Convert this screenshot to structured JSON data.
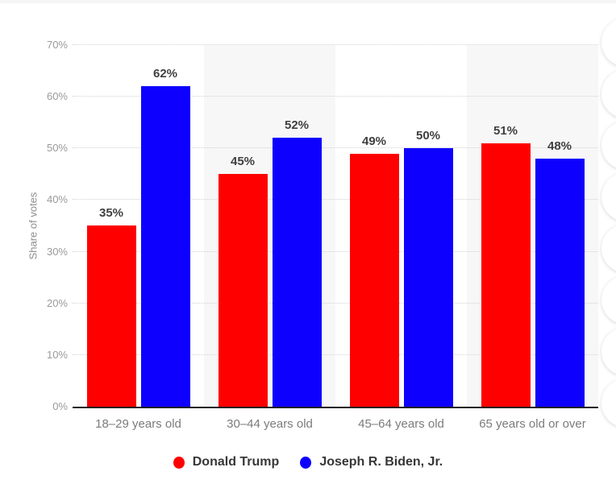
{
  "chart_data": {
    "type": "bar",
    "title": "",
    "categories": [
      "18–29 years old",
      "30–44 years old",
      "45–64 years old",
      "65 years old or over"
    ],
    "series": [
      {
        "name": "Donald Trump",
        "color": "#ff0000",
        "values": [
          35,
          45,
          49,
          51
        ]
      },
      {
        "name": "Joseph R. Biden, Jr.",
        "color": "#0d00ff",
        "values": [
          62,
          52,
          50,
          48
        ]
      }
    ],
    "value_labels": [
      [
        "35%",
        "45%",
        "49%",
        "51%"
      ],
      [
        "62%",
        "52%",
        "50%",
        "48%"
      ]
    ],
    "xlabel": "",
    "ylabel": "Share of votes",
    "ylim": [
      0,
      70
    ],
    "yticks": [
      "0%",
      "10%",
      "20%",
      "30%",
      "40%",
      "50%",
      "60%",
      "70%"
    ],
    "grid": "horizontal-dotted",
    "band_alternation": "columns 2 and 4 shaded",
    "legend_position": "bottom-center"
  },
  "colors": {
    "bar_red": "#ff0000",
    "bar_blue": "#0d00ff",
    "band_shade": "#f7f7f7",
    "gridline": "#d2d2d2",
    "axis_line": "#1f1f1f",
    "tick_text": "#9a9a9a",
    "category_text": "#7b7b7b",
    "value_text": "#404040",
    "legend_text": "#373737"
  },
  "decorations": {
    "right_edge_buttons_count": 8
  }
}
